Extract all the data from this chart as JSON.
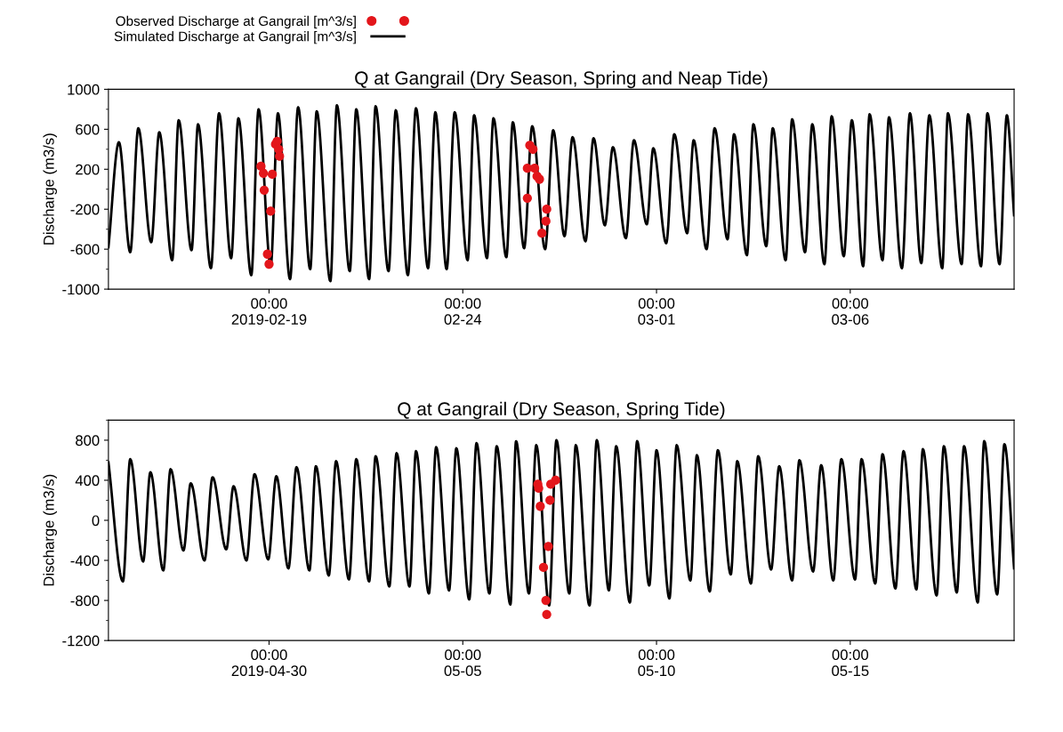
{
  "chart_data": [
    {
      "type": "line",
      "title": "Q at Gangrail (Dry Season, Spring and Neap Tide)",
      "ylabel": "Discharge (m3/s)",
      "legend": "top left",
      "xlim": [
        "2019-02-14T20:30",
        "2019-03-10T05:30"
      ],
      "xticks": [
        {
          "value": "2019-02-19T00:00",
          "label": "00:00\n2019-02-19"
        },
        {
          "value": "2019-02-24T00:00",
          "label": "00:00\n02-24"
        },
        {
          "value": "2019-03-01T00:00",
          "label": "00:00\n03-01"
        },
        {
          "value": "2019-03-06T00:00",
          "label": "00:00\n03-06"
        }
      ],
      "ylim": [
        -1000,
        1000
      ],
      "yticks": [
        1000,
        {
          "value": 800,
          "label": null
        },
        600,
        {
          "value": 400,
          "label": null
        },
        200,
        {
          "value": 0,
          "label": null
        },
        -200,
        {
          "value": -400,
          "label": null
        },
        -600,
        {
          "value": -800,
          "label": null
        },
        -1000
      ],
      "series": [
        {
          "name": "Observed Discharge at Gangrail [m^3/s]",
          "type": "scatter",
          "marker": "circle",
          "color": "#e3161b",
          "x": [
            "2019-02-18T19:00",
            "2019-02-18T20:30",
            "2019-02-18T21:00",
            "2019-02-18T23:00",
            "2019-02-19T00:00",
            "2019-02-19T01:00",
            "2019-02-19T02:00",
            "2019-02-19T04:00",
            "2019-02-19T05:00",
            "2019-02-19T06:00",
            "2019-02-19T06:30",
            "2019-02-25T16:00",
            "2019-02-25T16:00",
            "2019-02-25T17:30",
            "2019-02-25T19:30",
            "2019-02-25T20:30",
            "2019-02-25T22:00",
            "2019-02-25T23:30",
            "2019-02-26T01:00",
            "2019-02-26T03:30",
            "2019-02-26T04:00"
          ],
          "values": [
            230,
            160,
            -10,
            -650,
            -750,
            -220,
            150,
            450,
            480,
            400,
            330,
            -90,
            210,
            440,
            400,
            210,
            130,
            100,
            -440,
            -320,
            -200
          ]
        },
        {
          "name": "Simulated Discharge at Gangrail [m^3/s]",
          "line_style": "solid",
          "color": "#000000",
          "x": [
            "2019-02-14T20:30",
            "2019-02-15T03:00",
            "2019-02-15T10:00",
            "2019-02-15T15:00",
            "2019-02-15T23:00",
            "2019-02-16T04:00",
            "2019-02-16T12:00",
            "2019-02-16T16:00",
            "2019-02-17T00:00",
            "2019-02-17T04:00",
            "2019-02-17T12:00",
            "2019-02-17T17:00",
            "2019-02-18T00:30",
            "2019-02-18T05:00",
            "2019-02-18T13:00",
            "2019-02-18T17:30",
            "2019-02-19T01:00",
            "2019-02-19T05:30",
            "2019-02-19T13:00",
            "2019-02-19T18:00",
            "2019-02-20T01:30",
            "2019-02-20T05:30",
            "2019-02-20T14:00",
            "2019-02-20T18:00",
            "2019-02-21T02:00",
            "2019-02-21T06:00",
            "2019-02-21T14:00",
            "2019-02-21T18:00",
            "2019-02-22T02:00",
            "2019-02-22T06:30",
            "2019-02-22T14:00",
            "2019-02-22T19:00",
            "2019-02-23T02:30",
            "2019-02-23T07:00",
            "2019-02-23T14:00",
            "2019-02-23T19:00",
            "2019-02-24T03:00",
            "2019-02-24T07:00",
            "2019-02-24T15:00",
            "2019-02-24T19:00",
            "2019-02-25T03:00",
            "2019-02-25T07:00",
            "2019-02-25T14:00",
            "2019-02-25T19:00",
            "2019-02-26T03:00",
            "2019-02-26T08:00",
            "2019-02-26T15:00",
            "2019-02-26T20:00",
            "2019-02-27T04:00",
            "2019-02-27T09:00",
            "2019-02-27T16:00",
            "2019-02-27T21:00",
            "2019-02-28T05:00",
            "2019-02-28T10:00",
            "2019-02-28T18:00",
            "2019-02-28T22:00",
            "2019-03-01T06:00",
            "2019-03-01T11:00",
            "2019-03-01T19:00",
            "2019-03-01T23:00",
            "2019-03-02T07:00",
            "2019-03-02T12:00",
            "2019-03-02T20:00",
            "2019-03-03T00:00",
            "2019-03-03T08:00",
            "2019-03-03T12:00",
            "2019-03-03T20:00",
            "2019-03-04T00:00",
            "2019-03-04T08:00",
            "2019-03-04T12:00",
            "2019-03-04T20:00",
            "2019-03-05T00:30",
            "2019-03-05T08:00",
            "2019-03-05T12:30",
            "2019-03-05T20:00",
            "2019-03-06T01:00",
            "2019-03-06T08:00",
            "2019-03-06T12:00",
            "2019-03-06T20:00",
            "2019-03-07T00:00",
            "2019-03-07T08:00",
            "2019-03-07T13:00",
            "2019-03-07T20:00",
            "2019-03-08T01:00",
            "2019-03-08T09:00",
            "2019-03-08T12:30",
            "2019-03-08T21:00",
            "2019-03-09T01:00",
            "2019-03-09T09:00",
            "2019-03-09T13:00",
            "2019-03-09T20:30",
            "2019-03-10T01:00",
            "2019-03-10T05:30"
          ],
          "values": [
            -580,
            470,
            -630,
            610,
            -530,
            570,
            -710,
            690,
            -610,
            650,
            -790,
            760,
            -690,
            710,
            -860,
            800,
            -770,
            760,
            -900,
            820,
            -800,
            780,
            -920,
            840,
            -820,
            800,
            -900,
            830,
            -820,
            790,
            -860,
            810,
            -790,
            770,
            -800,
            770,
            -710,
            740,
            -690,
            710,
            -680,
            670,
            -590,
            630,
            -600,
            590,
            -470,
            520,
            -520,
            510,
            -360,
            420,
            -490,
            490,
            -350,
            410,
            -540,
            550,
            -440,
            490,
            -600,
            610,
            -500,
            550,
            -660,
            650,
            -570,
            610,
            -710,
            700,
            -630,
            650,
            -750,
            730,
            -670,
            690,
            -770,
            750,
            -710,
            720,
            -790,
            760,
            -740,
            740,
            -790,
            760,
            -750,
            750,
            -770,
            760,
            -750,
            740,
            -260
          ]
        }
      ]
    },
    {
      "type": "line",
      "title": "Q at Gangrail (Dry Season, Spring Tide)",
      "ylabel": "Discharge (m3/s)",
      "xlim": [
        "2019-04-25T20:30",
        "2019-05-19T05:30"
      ],
      "xticks": [
        {
          "value": "2019-04-30T00:00",
          "label": "00:00\n2019-04-30"
        },
        {
          "value": "2019-05-05T00:00",
          "label": "00:00\n05-05"
        },
        {
          "value": "2019-05-10T00:00",
          "label": "00:00\n05-10"
        },
        {
          "value": "2019-05-15T00:00",
          "label": "00:00\n05-15"
        }
      ],
      "ylim": [
        -1200,
        1000
      ],
      "yticks": [
        {
          "value": 1000,
          "label": null
        },
        800,
        {
          "value": 600,
          "label": null
        },
        400,
        {
          "value": 200,
          "label": null
        },
        0,
        {
          "value": -200,
          "label": null
        },
        -400,
        {
          "value": -600,
          "label": null
        },
        -800,
        {
          "value": -1000,
          "label": null
        },
        -1200
      ],
      "series": [
        {
          "type": "scatter",
          "marker": "circle",
          "color": "#e3161b",
          "x": [
            "2019-05-06T22:30",
            "2019-05-06T23:00",
            "2019-05-07T00:00",
            "2019-05-07T02:00",
            "2019-05-07T03:30",
            "2019-05-07T04:00",
            "2019-05-07T05:00",
            "2019-05-07T06:00",
            "2019-05-07T06:30",
            "2019-05-07T09:30"
          ],
          "values": [
            360,
            320,
            140,
            -470,
            -800,
            -940,
            -260,
            200,
            360,
            400
          ]
        },
        {
          "line_style": "solid",
          "color": "#000000",
          "x": [
            "2019-04-25T20:30",
            "2019-04-26T05:30",
            "2019-04-26T10:00",
            "2019-04-26T18:00",
            "2019-04-26T22:30",
            "2019-04-27T06:30",
            "2019-04-27T11:00",
            "2019-04-27T19:00",
            "2019-04-27T23:30",
            "2019-04-28T08:00",
            "2019-04-28T13:00",
            "2019-04-28T21:30",
            "2019-04-29T02:00",
            "2019-04-29T10:00",
            "2019-04-29T15:00",
            "2019-04-29T23:30",
            "2019-04-30T04:30",
            "2019-04-30T12:00",
            "2019-04-30T17:00",
            "2019-05-01T01:00",
            "2019-05-01T05:00",
            "2019-05-01T13:00",
            "2019-05-01T17:30",
            "2019-05-02T01:30",
            "2019-05-02T06:00",
            "2019-05-02T14:00",
            "2019-05-02T18:00",
            "2019-05-03T02:30",
            "2019-05-03T07:00",
            "2019-05-03T15:00",
            "2019-05-03T19:00",
            "2019-05-04T03:00",
            "2019-05-04T07:30",
            "2019-05-04T15:30",
            "2019-05-04T20:00",
            "2019-05-05T04:00",
            "2019-05-05T08:30",
            "2019-05-05T16:30",
            "2019-05-05T21:00",
            "2019-05-06T05:30",
            "2019-05-06T09:00",
            "2019-05-06T17:00",
            "2019-05-06T21:30",
            "2019-05-07T05:30",
            "2019-05-07T10:00",
            "2019-05-07T18:00",
            "2019-05-07T22:00",
            "2019-05-08T06:30",
            "2019-05-08T11:00",
            "2019-05-08T18:30",
            "2019-05-08T23:00",
            "2019-05-09T07:30",
            "2019-05-09T12:00",
            "2019-05-09T19:30",
            "2019-05-10T00:00",
            "2019-05-10T08:00",
            "2019-05-10T12:30",
            "2019-05-10T21:00",
            "2019-05-11T01:00",
            "2019-05-11T09:00",
            "2019-05-11T14:00",
            "2019-05-11T22:00",
            "2019-05-12T02:00",
            "2019-05-12T10:30",
            "2019-05-12T15:00",
            "2019-05-12T23:00",
            "2019-05-13T04:00",
            "2019-05-13T12:00",
            "2019-05-13T16:30",
            "2019-05-14T01:00",
            "2019-05-14T06:00",
            "2019-05-14T13:30",
            "2019-05-14T18:30",
            "2019-05-15T03:00",
            "2019-05-15T07:00",
            "2019-05-15T15:30",
            "2019-05-15T20:00",
            "2019-05-16T04:00",
            "2019-05-16T09:00",
            "2019-05-16T17:00",
            "2019-05-16T21:00",
            "2019-05-17T05:30",
            "2019-05-17T10:00",
            "2019-05-17T18:00",
            "2019-05-17T22:30",
            "2019-05-18T07:00",
            "2019-05-18T11:00",
            "2019-05-18T19:00",
            "2019-05-18T23:30",
            "2019-05-19T05:30"
          ],
          "values": [
            580,
            -610,
            610,
            -410,
            480,
            -500,
            510,
            -300,
            370,
            -400,
            430,
            -290,
            340,
            -400,
            460,
            -390,
            440,
            -480,
            530,
            -500,
            540,
            -550,
            590,
            -590,
            610,
            -610,
            640,
            -660,
            670,
            -660,
            690,
            -730,
            730,
            -700,
            720,
            -790,
            770,
            -730,
            740,
            -840,
            790,
            -730,
            750,
            -850,
            800,
            -730,
            750,
            -850,
            800,
            -700,
            740,
            -820,
            790,
            -650,
            700,
            -780,
            750,
            -600,
            650,
            -710,
            700,
            -540,
            590,
            -630,
            640,
            -490,
            540,
            -600,
            600,
            -510,
            550,
            -600,
            610,
            -590,
            610,
            -630,
            660,
            -680,
            690,
            -690,
            710,
            -750,
            740,
            -720,
            740,
            -820,
            790,
            -740,
            760,
            -480
          ]
        }
      ]
    }
  ]
}
